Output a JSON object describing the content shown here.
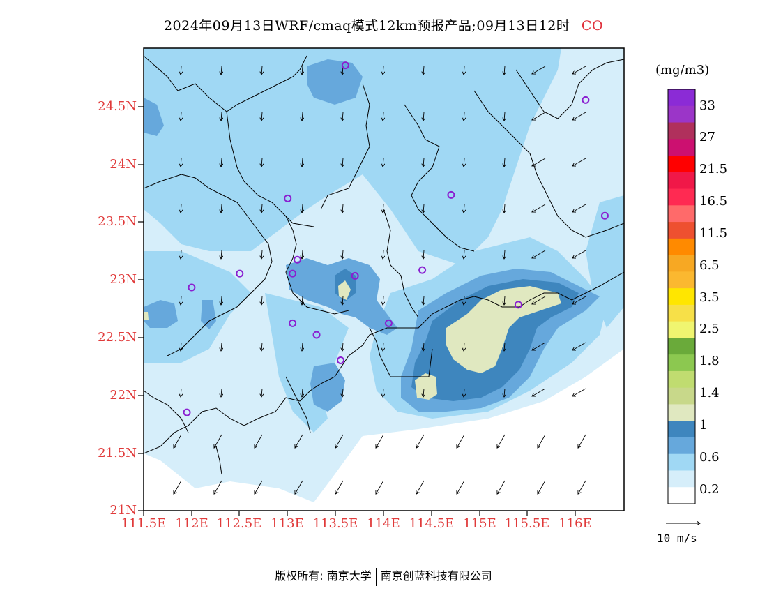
{
  "title": {
    "text": "2024年09月13日WRF/cmaq模式12km预报产品;09月13日12时",
    "species": "CO"
  },
  "axes": {
    "lat_ticks": [
      "24.5N",
      "24N",
      "23.5N",
      "23N",
      "22.5N",
      "22N",
      "21.5N",
      "21N"
    ],
    "lon_ticks": [
      "111.5E",
      "112E",
      "112.5E",
      "113E",
      "113.5E",
      "114E",
      "114.5E",
      "115E",
      "115.5E",
      "116E"
    ]
  },
  "legend": {
    "unit": "(mg/m3)",
    "labels": [
      "33",
      "27",
      "21.5",
      "16.5",
      "11.5",
      "6.5",
      "3.5",
      "2.5",
      "1.8",
      "1.4",
      "1",
      "0.6",
      "0.2"
    ],
    "colors": [
      "#8b2bd6",
      "#9b35c8",
      "#b0305c",
      "#cc1070",
      "#ff0000",
      "#f01848",
      "#ff2a52",
      "#ff6a6a",
      "#ee5030",
      "#ff8a00",
      "#f7a823",
      "#fbb830",
      "#ffe600",
      "#f7e048",
      "#f0f570",
      "#6aaa3a",
      "#8cc850",
      "#c0dc70",
      "#c8d88a",
      "#e0e8c0",
      "#3e86be",
      "#66a8dc",
      "#a0d8f4",
      "#d6eefa",
      "#ffffff"
    ]
  },
  "wind_reference": {
    "label": "10 m/s"
  },
  "stations": [
    {
      "lon": 113.6,
      "lat": 24.85
    },
    {
      "lon": 116.1,
      "lat": 24.55
    },
    {
      "lon": 113.0,
      "lat": 23.7
    },
    {
      "lon": 114.7,
      "lat": 23.73
    },
    {
      "lon": 116.3,
      "lat": 23.55
    },
    {
      "lon": 113.1,
      "lat": 23.17
    },
    {
      "lon": 113.05,
      "lat": 23.05
    },
    {
      "lon": 113.7,
      "lat": 23.03
    },
    {
      "lon": 114.4,
      "lat": 23.08
    },
    {
      "lon": 112.5,
      "lat": 23.05
    },
    {
      "lon": 112.0,
      "lat": 22.93
    },
    {
      "lon": 113.05,
      "lat": 22.62
    },
    {
      "lon": 113.3,
      "lat": 22.52
    },
    {
      "lon": 114.05,
      "lat": 22.62
    },
    {
      "lon": 115.4,
      "lat": 22.78
    },
    {
      "lon": 113.55,
      "lat": 22.3
    },
    {
      "lon": 111.95,
      "lat": 21.85
    }
  ],
  "copyright": {
    "left": "版权所有: 南京大学",
    "right": "南京创蓝科技有限公司"
  }
}
